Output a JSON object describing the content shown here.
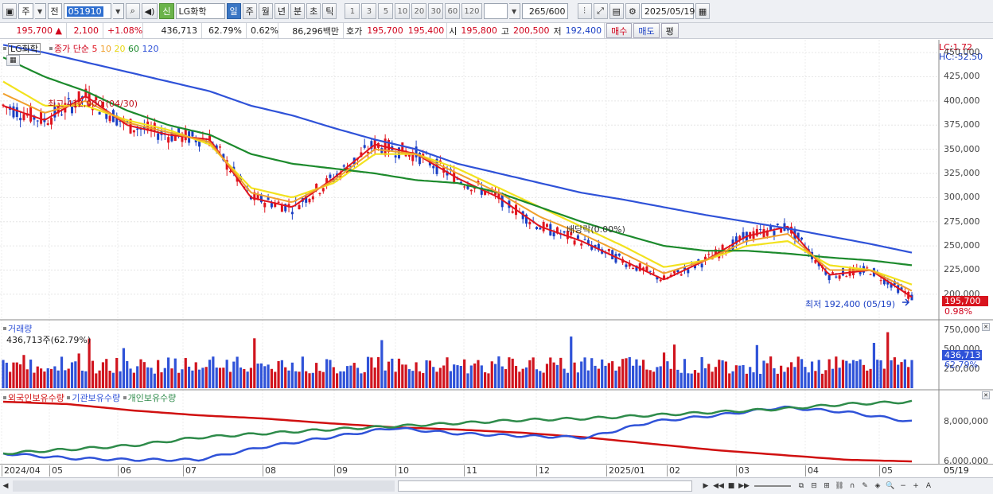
{
  "toolbar": {
    "market": "주",
    "range": "전",
    "code": "051910",
    "stock_name": "LG화학",
    "credit": "신",
    "periods": [
      "일",
      "주",
      "월",
      "년",
      "분",
      "초",
      "틱"
    ],
    "active_period": "일",
    "minutes": [
      "1",
      "3",
      "5",
      "10",
      "20",
      "30",
      "60",
      "120"
    ],
    "count_value": "265",
    "count_total": "/600",
    "date": "2025/05/19"
  },
  "quote": {
    "price": "195,700",
    "change": "2,100",
    "change_pct": "+1.08%",
    "volume": "436,713",
    "vol_ratio": "62.79%",
    "turnover": "0.62%",
    "amount": "86,296백만",
    "ask_label": "호가",
    "ask": "195,700",
    "bid": "195,400",
    "open_label": "시",
    "open": "195,800",
    "high_label": "고",
    "high": "200,500",
    "low_label": "저",
    "low": "192,400",
    "buy": "매수",
    "sell": "매도",
    "eval": "평"
  },
  "price_panel": {
    "title": "LG화학",
    "ma_label": "종가 단순",
    "ma_periods": [
      "5",
      "10",
      "20",
      "60",
      "120"
    ],
    "ma_colors": [
      "#e0141e",
      "#f0a02c",
      "#f2e21e",
      "#1c8a2c",
      "#2f52d8"
    ],
    "lc": "LC:1.72",
    "hc": "HC:-52.50",
    "high_note": "최고 412,000 (04/30)",
    "low_note": "최저 192,400 (05/19)",
    "div_note": "배당락(0.00%)",
    "current": "195,700",
    "current_pct": "0.98%",
    "axis": [
      "450,000",
      "425,000",
      "400,000",
      "375,000",
      "350,000",
      "325,000",
      "300,000",
      "275,000",
      "250,000",
      "225,000",
      "200,000"
    ]
  },
  "volume_panel": {
    "title": "거래량",
    "value": "436,713주(62.79%)",
    "axis": [
      "750,000",
      "500,000",
      "250,000"
    ],
    "current": "436,713",
    "current_pct": "62.79%"
  },
  "holding_panel": {
    "legend": [
      "외국인보유수량",
      "기관보유수량",
      "개인보유수량"
    ],
    "colors": [
      "#d01010",
      "#2f52d8",
      "#2e8b4a"
    ],
    "axis": [
      "8,000,000",
      "6,000,000"
    ]
  },
  "time_axis": {
    "labels": [
      "2024/04",
      "05",
      "06",
      "07",
      "08",
      "09",
      "10",
      "11",
      "12",
      "2025/01",
      "02",
      "03",
      "04",
      "05"
    ],
    "end_date": "05/19"
  },
  "chart_data": {
    "type": "line",
    "x_range": [
      "2024/04",
      "2025/05/19"
    ],
    "ylim": [
      190000,
      455000
    ],
    "series": [
      {
        "name": "LG화학",
        "type": "candlestick",
        "current": 195700,
        "high": 412000,
        "low": 192400
      },
      {
        "name": "5",
        "values": [
          395000,
          380000,
          405000,
          375000,
          365000,
          360000,
          300000,
          290000,
          320000,
          355000,
          345000,
          320000,
          300000,
          270000,
          255000,
          235000,
          215000,
          235000,
          260000,
          270000,
          220000,
          225000,
          197000
        ]
      },
      {
        "name": "20",
        "values": [
          420000,
          395000,
          395000,
          380000,
          370000,
          355000,
          310000,
          300000,
          315000,
          345000,
          345000,
          330000,
          310000,
          290000,
          270000,
          250000,
          228000,
          235000,
          250000,
          255000,
          230000,
          225000,
          210000
        ]
      },
      {
        "name": "60",
        "values": [
          445000,
          425000,
          410000,
          390000,
          375000,
          365000,
          345000,
          335000,
          330000,
          325000,
          318000,
          315000,
          305000,
          290000,
          275000,
          262000,
          250000,
          245000,
          245000,
          242000,
          238000,
          235000,
          230000
        ]
      },
      {
        "name": "120",
        "values": [
          458000,
          450000,
          440000,
          430000,
          420000,
          410000,
          395000,
          385000,
          372000,
          360000,
          350000,
          335000,
          325000,
          315000,
          305000,
          298000,
          290000,
          282000,
          275000,
          268000,
          260000,
          252000,
          243000
        ]
      }
    ]
  }
}
